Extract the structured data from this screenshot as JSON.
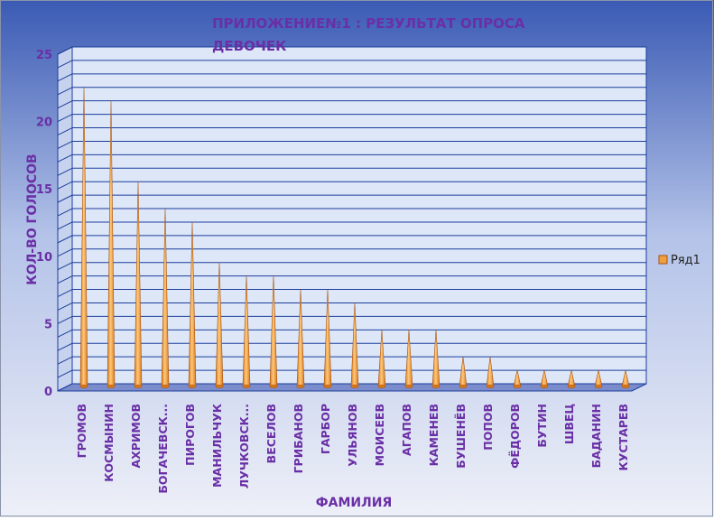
{
  "chart_data": {
    "type": "bar",
    "title": "ПРИЛОЖЕНИЕ№1 : РЕЗУЛЬТАТ ОПРОСА ДЕВОЧЕК",
    "title_lines": [
      "ПРИЛОЖЕНИЕ№1 : РЕЗУЛЬТАТ ОПРОСА",
      "ДЕВОЧЕК"
    ],
    "xlabel": "ФАМИЛИЯ",
    "ylabel": "КОЛ-ВО ГОЛОСОВ",
    "ylim": [
      0,
      25
    ],
    "yticks": [
      "0",
      "5",
      "10",
      "15",
      "20",
      "25"
    ],
    "grid": true,
    "legend_position": "right",
    "categories": [
      "ГРОМОВ",
      "КОСМЫНИН",
      "АХРИМОВ",
      "БОГАЧЕВСК...",
      "ПИРОГОВ",
      "МАНИЛЬЧУК",
      "ЛУЧКОВСК...",
      "ВЕСЕЛОВ",
      "ГРИБАНОВ",
      "ГАРБОР",
      "УЛЬЯНОВ",
      "МОИСЕЕВ",
      "АГАПОВ",
      "КАМЕНЕВ",
      "БУШЕНЁВ",
      "ПОПОВ",
      "ФЁДОРОВ",
      "БУТИН",
      "ШВЕЦ",
      "БАДАНИН",
      "КУСТАРЕВ"
    ],
    "series": [
      {
        "name": "Ряд1",
        "values": [
          22,
          21,
          15,
          13,
          12,
          9,
          8,
          8,
          7,
          7,
          6,
          4,
          4,
          4,
          2,
          2,
          1,
          1,
          1,
          1,
          1
        ]
      }
    ],
    "colors": {
      "background_top": "#3a5ab4",
      "background_bottom": "#eef0f8",
      "plot_wall": "#dde7f8",
      "gridline": "#1d3e9c",
      "floor": "#7b8ccc",
      "text": "#6a2fa6",
      "cone_light": "#ffc97a",
      "cone_dark": "#d8781c",
      "cone_stroke": "#a8520d"
    }
  }
}
